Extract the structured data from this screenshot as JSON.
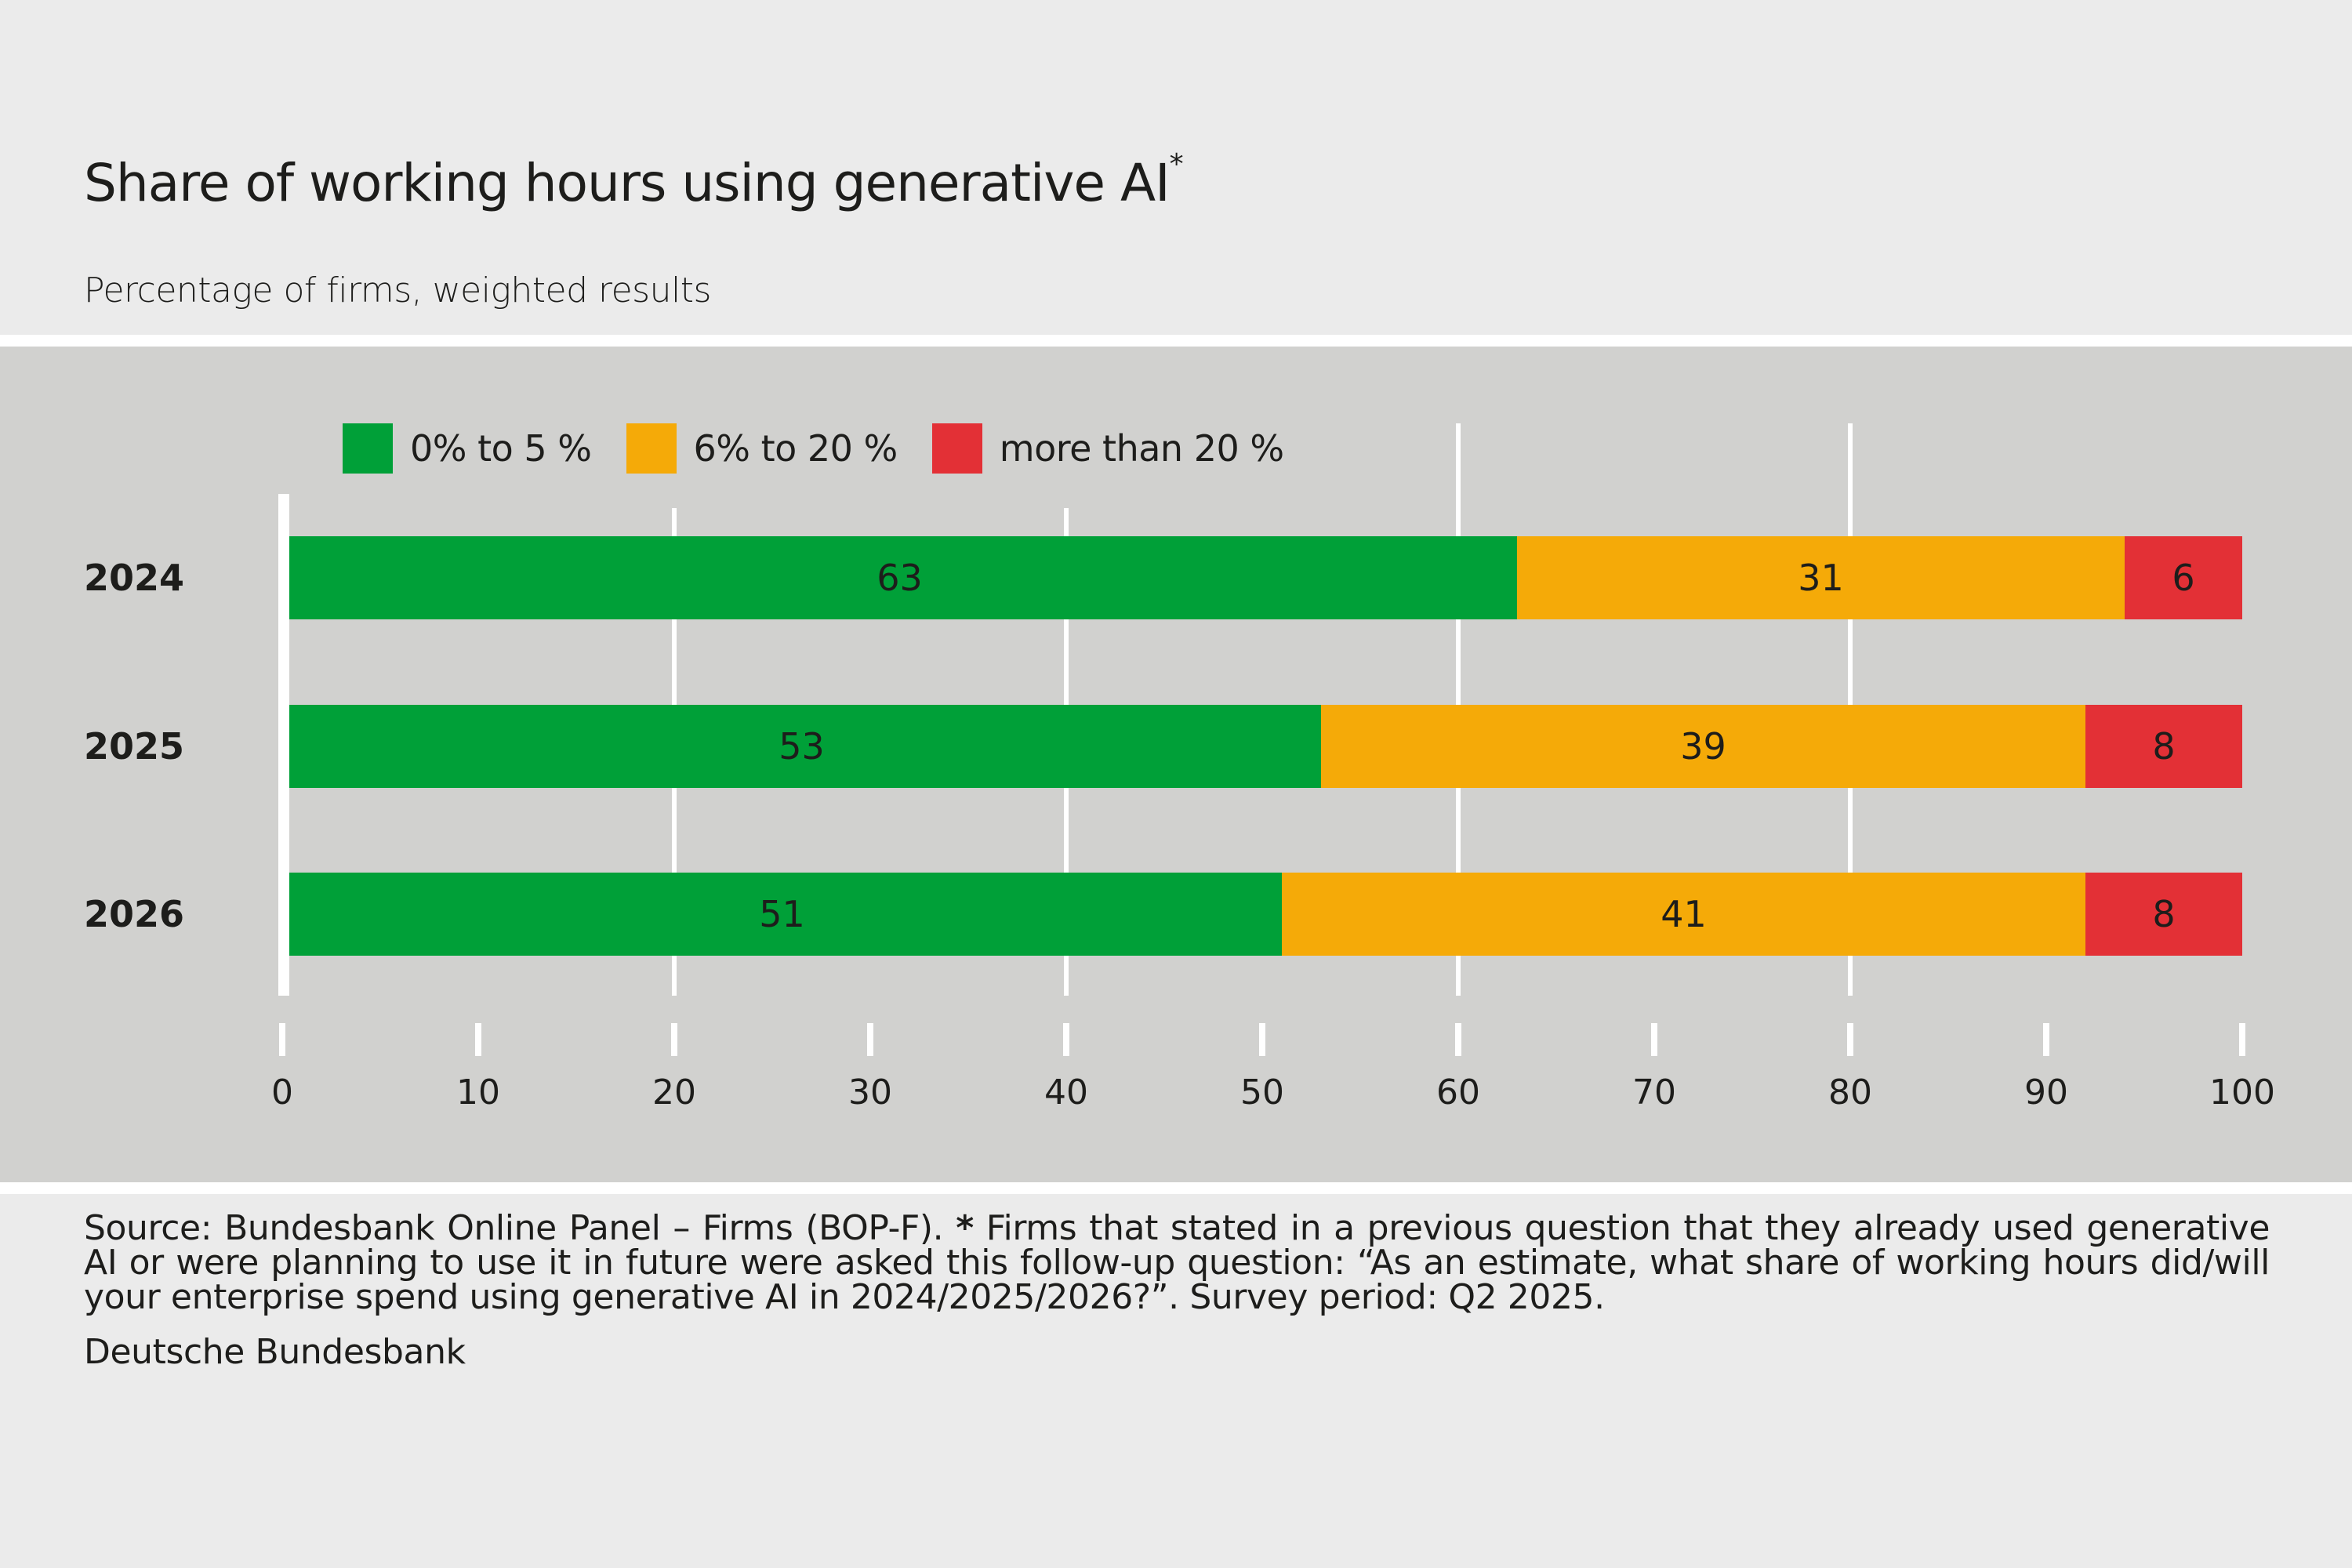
{
  "title": "Share of working hours using generative AI",
  "title_marker": "*",
  "subtitle": "Percentage of firms, weighted results",
  "colors": {
    "background": "#ebebeb",
    "panel": "#d1d1cf",
    "gridline": "#ffffff",
    "text": "#1d1d1b"
  },
  "chart_data": {
    "type": "bar",
    "orientation": "horizontal",
    "stacked": true,
    "title": "Share of working hours using generative AI*",
    "subtitle": "Percentage of firms, weighted results",
    "xlabel": "",
    "ylabel": "",
    "xlim": [
      0,
      100
    ],
    "x_ticks": [
      0,
      10,
      20,
      30,
      40,
      50,
      60,
      70,
      80,
      90,
      100
    ],
    "grid": true,
    "gridlines_at": [
      20,
      40,
      60,
      80
    ],
    "legend_position": "top-left",
    "categories": [
      "2024",
      "2025",
      "2026"
    ],
    "series": [
      {
        "name": "0% to 5 %",
        "color": "#00a038",
        "values": [
          63,
          53,
          51
        ]
      },
      {
        "name": "6% to 20 %",
        "color": "#f5aa08",
        "values": [
          31,
          39,
          41
        ]
      },
      {
        "name": "more than 20 %",
        "color": "#e33036",
        "values": [
          6,
          8,
          8
        ]
      }
    ]
  },
  "footer": {
    "source": "Source: Bundesbank Online Panel – Firms (BOP-F).",
    "note_marker": "*",
    "note": " Firms that stated in a previous question that they already used generative AI or were planning to use it in future were asked this follow-up question: “As an estimate, what share of working hours did/will your enterprise spend using generative AI in 2024/2025/2026?”. Survey period: Q2 2025.",
    "organization": "Deutsche Bundesbank"
  }
}
